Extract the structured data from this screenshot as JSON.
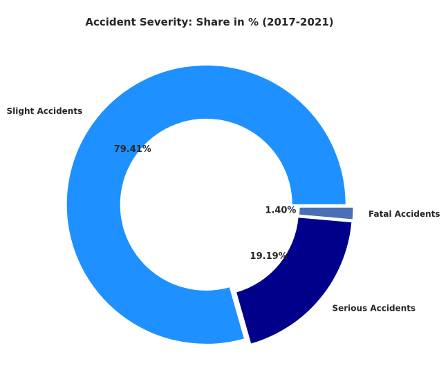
{
  "chart_data": {
    "type": "pie",
    "title": "Accident Severity: Share in % (2017-2021)",
    "donut": true,
    "slices": [
      {
        "label": "Slight Accidents",
        "value": 79.41,
        "pct_label": "79.41%",
        "color": "#1e90ff"
      },
      {
        "label": "Serious Accidents",
        "value": 19.19,
        "pct_label": "19.19%",
        "color": "#00008b"
      },
      {
        "label": "Fatal Accidents",
        "value": 1.4,
        "pct_label": "1.40%",
        "color": "#4a6fb5"
      }
    ]
  }
}
